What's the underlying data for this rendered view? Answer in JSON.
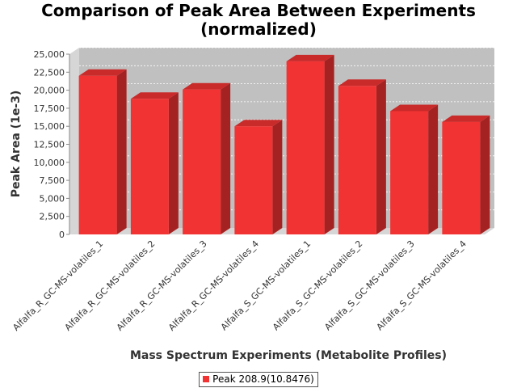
{
  "colors": {
    "bar": "#f23333",
    "bar_top": "#c92a2a",
    "bar_side": "#a52222",
    "plot_back": "#c0c0c0",
    "plot_floor": "#d6d6d6"
  },
  "chart_data": {
    "type": "bar",
    "title": "Comparison of Peak Area Between Experiments (normalized)",
    "title_lines": [
      "Comparison of Peak Area Between Experiments",
      "(normalized)"
    ],
    "xlabel": "Mass Spectrum Experiments (Metabolite Profiles)",
    "ylabel": "Peak Area (1e-3)",
    "ylim": [
      0,
      25000
    ],
    "yticks": [
      0,
      2500,
      5000,
      7500,
      10000,
      12500,
      15000,
      17500,
      20000,
      22500,
      25000
    ],
    "ytick_labels": [
      "0",
      "2,500",
      "5,000",
      "7,500",
      "10,000",
      "12,500",
      "15,000",
      "17,500",
      "20,000",
      "22,500",
      "25,000"
    ],
    "grid": true,
    "legend_position": "bottom",
    "categories": [
      "Alfalfa_R_GC-MS-volatiles_1",
      "Alfalfa_R_GC-MS-volatiles_2",
      "Alfalfa_R_GC-MS-volatiles_3",
      "Alfalfa_R_GC-MS-volatiles_4",
      "Alfalfa_S_GC-MS-volatiles_1",
      "Alfalfa_S_GC-MS-volatiles_2",
      "Alfalfa_S_GC-MS-volatiles_3",
      "Alfalfa_S_GC-MS-volatiles_4"
    ],
    "series": [
      {
        "name": "Peak 208.9(10.8476)",
        "values": [
          22000,
          18800,
          20100,
          15000,
          24000,
          20600,
          17100,
          15600
        ]
      }
    ]
  }
}
